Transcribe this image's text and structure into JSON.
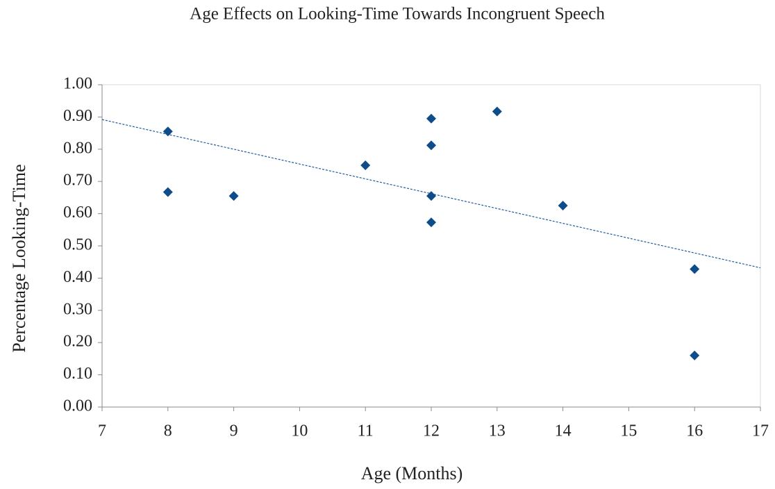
{
  "chart_data": {
    "type": "scatter",
    "title": "Age Effects on Looking-Time Towards Incongruent Speech",
    "x_label": "Age (Months)",
    "y_label": "Percentage Looking-Time",
    "series": [
      {
        "color": "#0f4c8a",
        "x": [
          8,
          8,
          9,
          11,
          12,
          12,
          12,
          12,
          13,
          14,
          16,
          16
        ],
        "values": [
          0.855,
          0.667,
          0.655,
          0.75,
          0.895,
          0.812,
          0.655,
          0.573,
          0.917,
          0.625,
          0.428,
          0.16
        ]
      }
    ],
    "trendline": {
      "color": "#1f5a9e",
      "x": [
        7,
        17
      ],
      "values": [
        0.892,
        0.432
      ]
    },
    "xlim": [
      7,
      17
    ],
    "xticks": [
      7,
      8,
      9,
      10,
      11,
      12,
      13,
      14,
      15,
      16,
      17
    ],
    "ylim": [
      0,
      1
    ],
    "yticks": [
      {
        "value": 0,
        "label": "0.00"
      },
      {
        "value": 0.1,
        "label": "0.10"
      },
      {
        "value": 0.2,
        "label": "0.20"
      },
      {
        "value": 0.3,
        "label": "0.30"
      },
      {
        "value": 0.4,
        "label": "0.40"
      },
      {
        "value": 0.5,
        "label": "0.50"
      },
      {
        "value": 0.6,
        "label": "0.60"
      },
      {
        "value": 0.7,
        "label": "0.70"
      },
      {
        "value": 0.8,
        "label": "0.80"
      },
      {
        "value": 0.9,
        "label": "0.90"
      },
      {
        "value": 1,
        "label": "1.00"
      }
    ],
    "grid": false
  }
}
